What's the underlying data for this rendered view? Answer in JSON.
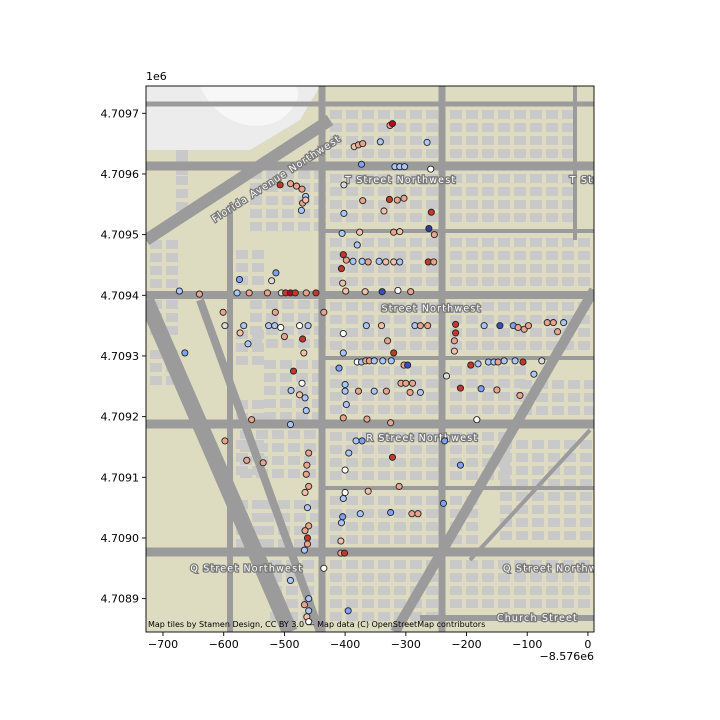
{
  "chart_data": {
    "type": "scatter",
    "title": "",
    "xlabel": "",
    "ylabel": "",
    "x_offset_label": "−8.576e6",
    "y_scale_label": "1e6",
    "xlim": [
      -728,
      10
    ],
    "ylim": [
      4708845,
      4709745
    ],
    "xticks": [
      -700,
      -600,
      -500,
      -400,
      -300,
      -200,
      -100,
      0
    ],
    "xtick_labels": [
      "−700",
      "−600",
      "−500",
      "−400",
      "−300",
      "−200",
      "−100",
      "0"
    ],
    "yticks": [
      4708900,
      4709000,
      4709100,
      4709200,
      4709300,
      4709400,
      4709500,
      4709600,
      4709700
    ],
    "ytick_labels": [
      "4.7089",
      "4.7090",
      "4.7091",
      "4.7092",
      "4.7093",
      "4.7094",
      "4.7095",
      "4.7096",
      "4.7097"
    ],
    "basemap_attribution": "Map tiles by Stamen Design, CC BY 3.0 — Map data (C) OpenStreetMap contributors",
    "street_labels": [
      {
        "text": "Florida Avenue Northwest",
        "x": -615,
        "y": 4709520,
        "rotate": -33
      },
      {
        "text": "T Street Northwest",
        "x": -400,
        "y": 4709585,
        "rotate": 0
      },
      {
        "text": "T Str",
        "x": -30,
        "y": 4709585,
        "rotate": 0
      },
      {
        "text": "Street Northwest",
        "x": -340,
        "y": 4709373,
        "rotate": 0
      },
      {
        "text": "R Street Northwest",
        "x": -365,
        "y": 4709160,
        "rotate": 0
      },
      {
        "text": "Q Street Northwest",
        "x": -655,
        "y": 4708945,
        "rotate": 0
      },
      {
        "text": "Q Street Northwe",
        "x": -140,
        "y": 4708945,
        "rotate": 0
      },
      {
        "text": "Church Street",
        "x": -150,
        "y": 4708863,
        "rotate": 0
      }
    ],
    "points": [
      {
        "x": -326,
        "y": 4709680,
        "c": "#e8a48c"
      },
      {
        "x": -322,
        "y": 4709683,
        "c": "#b40426"
      },
      {
        "x": -385,
        "y": 4709645,
        "c": "#f2c0a8"
      },
      {
        "x": -378,
        "y": 4709648,
        "c": "#e8a48c"
      },
      {
        "x": -371,
        "y": 4709650,
        "c": "#e8a48c"
      },
      {
        "x": -342,
        "y": 4709653,
        "c": "#aac7fd"
      },
      {
        "x": -265,
        "y": 4709652,
        "c": "#aac7fd"
      },
      {
        "x": -373,
        "y": 4709616,
        "c": "#7da0f9"
      },
      {
        "x": -318,
        "y": 4709612,
        "c": "#aac7fd"
      },
      {
        "x": -310,
        "y": 4709612,
        "c": "#aac7fd"
      },
      {
        "x": -302,
        "y": 4709612,
        "c": "#aac7fd"
      },
      {
        "x": -259,
        "y": 4709608,
        "c": "#ffffff"
      },
      {
        "x": -490,
        "y": 4709584,
        "c": "#e8a48c"
      },
      {
        "x": -480,
        "y": 4709580,
        "c": "#e8a48c"
      },
      {
        "x": -471,
        "y": 4709575,
        "c": "#e8a48c"
      },
      {
        "x": -465,
        "y": 4709563,
        "c": "#aac7fd"
      },
      {
        "x": -507,
        "y": 4709582,
        "c": "#c0392b"
      },
      {
        "x": -470,
        "y": 4709552,
        "c": "#e8a48c"
      },
      {
        "x": -465,
        "y": 4709557,
        "c": "#f2c0a8"
      },
      {
        "x": -402,
        "y": 4709582,
        "c": "#dddcdc"
      },
      {
        "x": -371,
        "y": 4709556,
        "c": "#e8a48c"
      },
      {
        "x": -327,
        "y": 4709558,
        "c": "#c0392b"
      },
      {
        "x": -314,
        "y": 4709557,
        "c": "#e8a48c"
      },
      {
        "x": -303,
        "y": 4709560,
        "c": "#e8a48c"
      },
      {
        "x": -336,
        "y": 4709539,
        "c": "#f2c0a8"
      },
      {
        "x": -258,
        "y": 4709537,
        "c": "#c0392b"
      },
      {
        "x": -402,
        "y": 4709535,
        "c": "#aac7fd"
      },
      {
        "x": -472,
        "y": 4709540,
        "c": "#aac7fd"
      },
      {
        "x": -405,
        "y": 4709502,
        "c": "#aac7fd"
      },
      {
        "x": -376,
        "y": 4709504,
        "c": "#f2c0a8"
      },
      {
        "x": -320,
        "y": 4709504,
        "c": "#e8a48c"
      },
      {
        "x": -310,
        "y": 4709505,
        "c": "#f2c0a8"
      },
      {
        "x": -262,
        "y": 4709510,
        "c": "#2c3e91"
      },
      {
        "x": -253,
        "y": 4709500,
        "c": "#e8a48c"
      },
      {
        "x": -380,
        "y": 4709483,
        "c": "#aac7fd"
      },
      {
        "x": -403,
        "y": 4709467,
        "c": "#c0392b"
      },
      {
        "x": -398,
        "y": 4709458,
        "c": "#e8a48c"
      },
      {
        "x": -387,
        "y": 4709456,
        "c": "#aac7fd"
      },
      {
        "x": -372,
        "y": 4709456,
        "c": "#aac7fd"
      },
      {
        "x": -362,
        "y": 4709455,
        "c": "#e8a48c"
      },
      {
        "x": -344,
        "y": 4709456,
        "c": "#aac7fd"
      },
      {
        "x": -333,
        "y": 4709455,
        "c": "#f2c0a8"
      },
      {
        "x": -320,
        "y": 4709455,
        "c": "#f2c0a8"
      },
      {
        "x": -310,
        "y": 4709455,
        "c": "#aac7fd"
      },
      {
        "x": -263,
        "y": 4709455,
        "c": "#c0392b"
      },
      {
        "x": -254,
        "y": 4709455,
        "c": "#e8a48c"
      },
      {
        "x": -406,
        "y": 4709444,
        "c": "#c0392b"
      },
      {
        "x": -404,
        "y": 4709420,
        "c": "#f2c0a8"
      },
      {
        "x": -574,
        "y": 4709426,
        "c": "#7da0f9"
      },
      {
        "x": -514,
        "y": 4709437,
        "c": "#7da0f9"
      },
      {
        "x": -521,
        "y": 4709424,
        "c": "#dddcdc"
      },
      {
        "x": -399,
        "y": 4709407,
        "c": "#f2c0a8"
      },
      {
        "x": -673,
        "y": 4709407,
        "c": "#aac7fd"
      },
      {
        "x": -640,
        "y": 4709402,
        "c": "#e8a48c"
      },
      {
        "x": -578,
        "y": 4709404,
        "c": "#aac7fd"
      },
      {
        "x": -558,
        "y": 4709404,
        "c": "#e8a48c"
      },
      {
        "x": -528,
        "y": 4709404,
        "c": "#e8a48c"
      },
      {
        "x": -505,
        "y": 4709404,
        "c": "#dddcdc"
      },
      {
        "x": -498,
        "y": 4709404,
        "c": "#c0392b"
      },
      {
        "x": -490,
        "y": 4709404,
        "c": "#b40426"
      },
      {
        "x": -482,
        "y": 4709404,
        "c": "#c0392b"
      },
      {
        "x": -464,
        "y": 4709404,
        "c": "#e8a48c"
      },
      {
        "x": -448,
        "y": 4709404,
        "c": "#c0392b"
      },
      {
        "x": -367,
        "y": 4709406,
        "c": "#f2c0a8"
      },
      {
        "x": -339,
        "y": 4709406,
        "c": "#3b4cc0"
      },
      {
        "x": -313,
        "y": 4709408,
        "c": "#ffffff"
      },
      {
        "x": -292,
        "y": 4709406,
        "c": "#e8a48c"
      },
      {
        "x": -601,
        "y": 4709372,
        "c": "#e8a48c"
      },
      {
        "x": -515,
        "y": 4709372,
        "c": "#e8a48c"
      },
      {
        "x": -435,
        "y": 4709372,
        "c": "#e8a48c"
      },
      {
        "x": -598,
        "y": 4709350,
        "c": "#dddcdc"
      },
      {
        "x": -567,
        "y": 4709350,
        "c": "#aac7fd"
      },
      {
        "x": -526,
        "y": 4709350,
        "c": "#aac7fd"
      },
      {
        "x": -516,
        "y": 4709350,
        "c": "#aac7fd"
      },
      {
        "x": -506,
        "y": 4709347,
        "c": "#ffffff"
      },
      {
        "x": -475,
        "y": 4709350,
        "c": "#ffffff"
      },
      {
        "x": -461,
        "y": 4709350,
        "c": "#aac7fd"
      },
      {
        "x": -403,
        "y": 4709337,
        "c": "#ffffff"
      },
      {
        "x": -365,
        "y": 4709350,
        "c": "#aac7fd"
      },
      {
        "x": -340,
        "y": 4709350,
        "c": "#f2c0a8"
      },
      {
        "x": -285,
        "y": 4709350,
        "c": "#aac7fd"
      },
      {
        "x": -276,
        "y": 4709350,
        "c": "#e8a48c"
      },
      {
        "x": -264,
        "y": 4709350,
        "c": "#e8a48c"
      },
      {
        "x": -218,
        "y": 4709352,
        "c": "#c0392b"
      },
      {
        "x": -218,
        "y": 4709338,
        "c": "#c0392b"
      },
      {
        "x": -171,
        "y": 4709350,
        "c": "#aac7fd"
      },
      {
        "x": -145,
        "y": 4709350,
        "c": "#3b4cc0"
      },
      {
        "x": -123,
        "y": 4709350,
        "c": "#7da0f9"
      },
      {
        "x": -115,
        "y": 4709347,
        "c": "#e8a48c"
      },
      {
        "x": -105,
        "y": 4709344,
        "c": "#e8a48c"
      },
      {
        "x": -98,
        "y": 4709350,
        "c": "#e8a48c"
      },
      {
        "x": -67,
        "y": 4709355,
        "c": "#e8a48c"
      },
      {
        "x": -57,
        "y": 4709355,
        "c": "#e8a48c"
      },
      {
        "x": -50,
        "y": 4709340,
        "c": "#e8a48c"
      },
      {
        "x": -40,
        "y": 4709355,
        "c": "#aac7fd"
      },
      {
        "x": -573,
        "y": 4709338,
        "c": "#f2c0a8"
      },
      {
        "x": -560,
        "y": 4709320,
        "c": "#aac7fd"
      },
      {
        "x": -500,
        "y": 4709332,
        "c": "#e8a48c"
      },
      {
        "x": -470,
        "y": 4709328,
        "c": "#c0392b"
      },
      {
        "x": -468,
        "y": 4709305,
        "c": "#f2c0a8"
      },
      {
        "x": -330,
        "y": 4709325,
        "c": "#e8a48c"
      },
      {
        "x": -220,
        "y": 4709325,
        "c": "#e8a48c"
      },
      {
        "x": -403,
        "y": 4709305,
        "c": "#aac7fd"
      },
      {
        "x": -320,
        "y": 4709305,
        "c": "#c0392b"
      },
      {
        "x": -220,
        "y": 4709308,
        "c": "#f2c0a8"
      },
      {
        "x": -380,
        "y": 4709290,
        "c": "#ffffff"
      },
      {
        "x": -373,
        "y": 4709290,
        "c": "#aac7fd"
      },
      {
        "x": -366,
        "y": 4709292,
        "c": "#e8a48c"
      },
      {
        "x": -360,
        "y": 4709292,
        "c": "#e8a48c"
      },
      {
        "x": -352,
        "y": 4709292,
        "c": "#aac7fd"
      },
      {
        "x": -338,
        "y": 4709292,
        "c": "#aac7fd"
      },
      {
        "x": -324,
        "y": 4709292,
        "c": "#aac7fd"
      },
      {
        "x": -303,
        "y": 4709285,
        "c": "#e8a48c"
      },
      {
        "x": -297,
        "y": 4709285,
        "c": "#3b4cc0"
      },
      {
        "x": -410,
        "y": 4709280,
        "c": "#7da0f9"
      },
      {
        "x": -233,
        "y": 4709267,
        "c": "#dddcdc"
      },
      {
        "x": -193,
        "y": 4709285,
        "c": "#c0392b"
      },
      {
        "x": -181,
        "y": 4709287,
        "c": "#aac7fd"
      },
      {
        "x": -164,
        "y": 4709290,
        "c": "#aac7fd"
      },
      {
        "x": -155,
        "y": 4709290,
        "c": "#aac7fd"
      },
      {
        "x": -148,
        "y": 4709290,
        "c": "#e8a48c"
      },
      {
        "x": -138,
        "y": 4709292,
        "c": "#aac7fd"
      },
      {
        "x": -120,
        "y": 4709292,
        "c": "#aac7fd"
      },
      {
        "x": -107,
        "y": 4709290,
        "c": "#c0392b"
      },
      {
        "x": -76,
        "y": 4709292,
        "c": "#dddcdc"
      },
      {
        "x": -89,
        "y": 4709270,
        "c": "#aac7fd"
      },
      {
        "x": -664,
        "y": 4709305,
        "c": "#7da0f9"
      },
      {
        "x": -485,
        "y": 4709275,
        "c": "#c0392b"
      },
      {
        "x": -471,
        "y": 4709255,
        "c": "#ffffff"
      },
      {
        "x": -489,
        "y": 4709243,
        "c": "#aac7fd"
      },
      {
        "x": -475,
        "y": 4709236,
        "c": "#f2c0a8"
      },
      {
        "x": -466,
        "y": 4709231,
        "c": "#aac7fd"
      },
      {
        "x": -400,
        "y": 4709253,
        "c": "#aac7fd"
      },
      {
        "x": -400,
        "y": 4709242,
        "c": "#aac7fd"
      },
      {
        "x": -378,
        "y": 4709242,
        "c": "#e8a48c"
      },
      {
        "x": -352,
        "y": 4709242,
        "c": "#aac7fd"
      },
      {
        "x": -332,
        "y": 4709242,
        "c": "#e8a48c"
      },
      {
        "x": -308,
        "y": 4709255,
        "c": "#e8a48c"
      },
      {
        "x": -300,
        "y": 4709255,
        "c": "#e8a48c"
      },
      {
        "x": -289,
        "y": 4709255,
        "c": "#e8a48c"
      },
      {
        "x": -293,
        "y": 4709240,
        "c": "#e8a48c"
      },
      {
        "x": -276,
        "y": 4709240,
        "c": "#aac7fd"
      },
      {
        "x": -210,
        "y": 4709247,
        "c": "#c0392b"
      },
      {
        "x": -176,
        "y": 4709246,
        "c": "#7da0f9"
      },
      {
        "x": -150,
        "y": 4709244,
        "c": "#e8a48c"
      },
      {
        "x": -112,
        "y": 4709235,
        "c": "#e8a48c"
      },
      {
        "x": -464,
        "y": 4709210,
        "c": "#aac7fd"
      },
      {
        "x": -398,
        "y": 4709220,
        "c": "#aac7fd"
      },
      {
        "x": -554,
        "y": 4709195,
        "c": "#e8a48c"
      },
      {
        "x": -490,
        "y": 4709187,
        "c": "#aac7fd"
      },
      {
        "x": -403,
        "y": 4709198,
        "c": "#e8a48c"
      },
      {
        "x": -364,
        "y": 4709196,
        "c": "#e8a48c"
      },
      {
        "x": -325,
        "y": 4709190,
        "c": "#e8a48c"
      },
      {
        "x": -183,
        "y": 4709195,
        "c": "#ffffff"
      },
      {
        "x": -598,
        "y": 4709160,
        "c": "#e8a48c"
      },
      {
        "x": -382,
        "y": 4709160,
        "c": "#aac7fd"
      },
      {
        "x": -372,
        "y": 4709160,
        "c": "#7da0f9"
      },
      {
        "x": -236,
        "y": 4709160,
        "c": "#7da0f9"
      },
      {
        "x": -460,
        "y": 4709140,
        "c": "#e8a48c"
      },
      {
        "x": -463,
        "y": 4709120,
        "c": "#e8a48c"
      },
      {
        "x": -394,
        "y": 4709140,
        "c": "#aac7fd"
      },
      {
        "x": -400,
        "y": 4709112,
        "c": "#ffffff"
      },
      {
        "x": -322,
        "y": 4709133,
        "c": "#c0392b"
      },
      {
        "x": -562,
        "y": 4709128,
        "c": "#e8a48c"
      },
      {
        "x": -535,
        "y": 4709124,
        "c": "#e8a48c"
      },
      {
        "x": -210,
        "y": 4709120,
        "c": "#7da0f9"
      },
      {
        "x": -464,
        "y": 4709105,
        "c": "#e8a48c"
      },
      {
        "x": -460,
        "y": 4709085,
        "c": "#e8a48c"
      },
      {
        "x": -400,
        "y": 4709075,
        "c": "#ffffff"
      },
      {
        "x": -362,
        "y": 4709077,
        "c": "#f2c0a8"
      },
      {
        "x": -311,
        "y": 4709085,
        "c": "#e8a48c"
      },
      {
        "x": -466,
        "y": 4709075,
        "c": "#f2c0a8"
      },
      {
        "x": -403,
        "y": 4709065,
        "c": "#aac7fd"
      },
      {
        "x": -238,
        "y": 4709057,
        "c": "#7da0f9"
      },
      {
        "x": -462,
        "y": 4709050,
        "c": "#aac7fd"
      },
      {
        "x": -375,
        "y": 4709040,
        "c": "#aac7fd"
      },
      {
        "x": -325,
        "y": 4709042,
        "c": "#7da0f9"
      },
      {
        "x": -290,
        "y": 4709040,
        "c": "#e8a48c"
      },
      {
        "x": -280,
        "y": 4709040,
        "c": "#e8a48c"
      },
      {
        "x": -404,
        "y": 4709035,
        "c": "#7da0f9"
      },
      {
        "x": -406,
        "y": 4709025,
        "c": "#aac7fd"
      },
      {
        "x": -460,
        "y": 4709020,
        "c": "#e8a48c"
      },
      {
        "x": -466,
        "y": 4709012,
        "c": "#e8a48c"
      },
      {
        "x": -462,
        "y": 4709000,
        "c": "#c0392b"
      },
      {
        "x": -462,
        "y": 4708990,
        "c": "#e8a48c"
      },
      {
        "x": -467,
        "y": 4708980,
        "c": "#aac7fd"
      },
      {
        "x": -407,
        "y": 4708995,
        "c": "#f2c0a8"
      },
      {
        "x": -407,
        "y": 4708975,
        "c": "#e8a48c"
      },
      {
        "x": -401,
        "y": 4708975,
        "c": "#c0392b"
      },
      {
        "x": -435,
        "y": 4708950,
        "c": "#ffffff"
      },
      {
        "x": -490,
        "y": 4708930,
        "c": "#aac7fd"
      },
      {
        "x": -460,
        "y": 4708900,
        "c": "#aac7fd"
      },
      {
        "x": -467,
        "y": 4708890,
        "c": "#e8a48c"
      },
      {
        "x": -460,
        "y": 4708880,
        "c": "#aac7fd"
      },
      {
        "x": -463,
        "y": 4708870,
        "c": "#f2c0a8"
      },
      {
        "x": -460,
        "y": 4708862,
        "c": "#ffffff"
      },
      {
        "x": -395,
        "y": 4708880,
        "c": "#7da0f9"
      }
    ]
  }
}
